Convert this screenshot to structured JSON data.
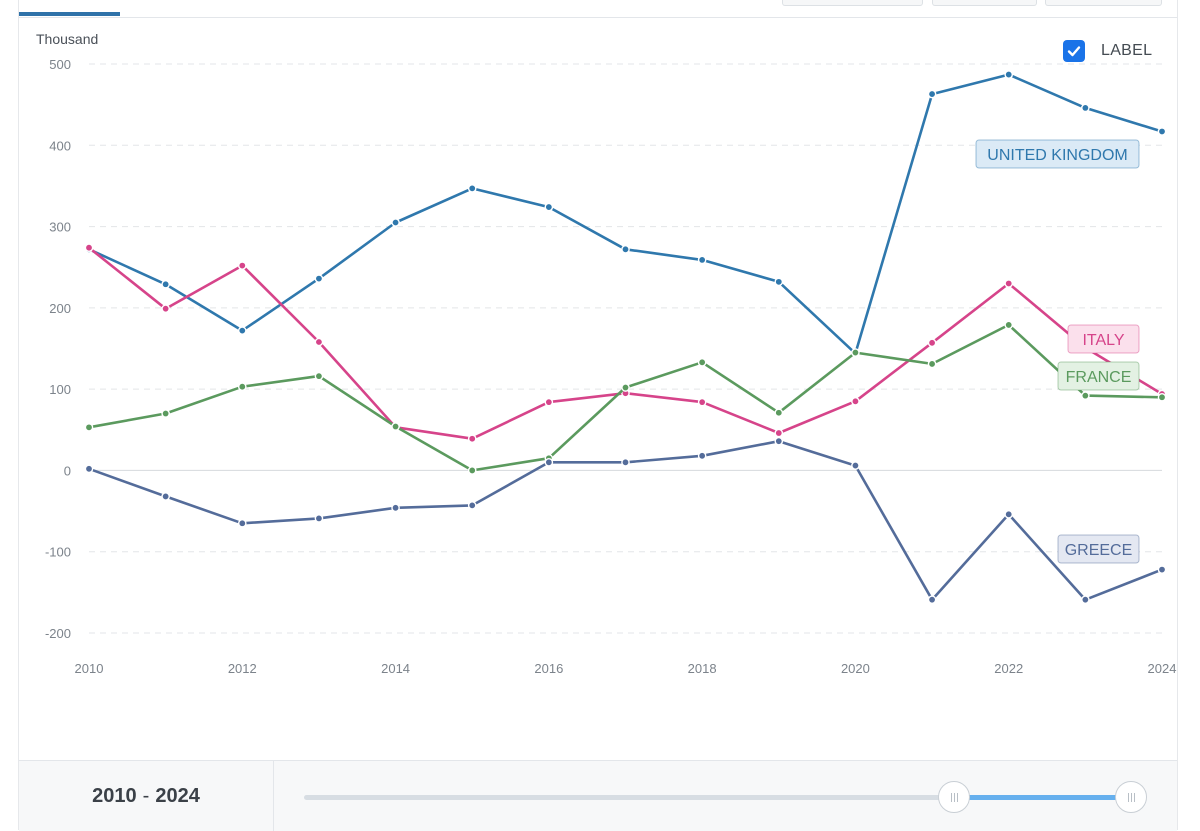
{
  "legend_toggle": {
    "label": "LABEL",
    "checked": true
  },
  "range": {
    "start": "2010",
    "separator": "-",
    "end": "2024"
  },
  "slider": {
    "min_year": 2010,
    "max_year": 2024,
    "selected_from": 2021,
    "selected_to": 2024
  },
  "chart_data": {
    "type": "line",
    "ylabel": "Thousand",
    "xlabel": "",
    "x": [
      2010,
      2011,
      2012,
      2013,
      2014,
      2015,
      2016,
      2017,
      2018,
      2019,
      2020,
      2021,
      2022,
      2023,
      2024
    ],
    "x_ticks": [
      2010,
      2012,
      2014,
      2016,
      2018,
      2020,
      2022,
      2024
    ],
    "y_ticks": [
      500,
      400,
      300,
      200,
      100,
      0,
      -100,
      -200
    ],
    "xlim": [
      2010,
      2024
    ],
    "ylim": [
      -200,
      500
    ],
    "grid": "horizontal dashed",
    "legend": "inline labels at right",
    "series": [
      {
        "name": "UNITED KINGDOM",
        "color": "#2f78ad",
        "label_bg": "#dbeaf6",
        "values": [
          272,
          229,
          172,
          236,
          305,
          347,
          324,
          272,
          259,
          232,
          144,
          463,
          487,
          446,
          417
        ]
      },
      {
        "name": "ITALY",
        "color": "#d6448a",
        "label_bg": "#fbe0ec",
        "values": [
          274,
          199,
          252,
          158,
          53,
          39,
          84,
          95,
          84,
          46,
          85,
          157,
          230,
          151,
          94
        ]
      },
      {
        "name": "FRANCE",
        "color": "#5b9a5e",
        "label_bg": "#e3f1e3",
        "values": [
          53,
          70,
          103,
          116,
          54,
          0,
          15,
          102,
          133,
          71,
          145,
          131,
          179,
          92,
          90
        ]
      },
      {
        "name": "GREECE",
        "color": "#546c9a",
        "label_bg": "#e4e8f2",
        "values": [
          2,
          -32,
          -65,
          -59,
          -46,
          -43,
          10,
          10,
          18,
          36,
          6,
          -159,
          -54,
          -159,
          -122
        ]
      }
    ]
  }
}
